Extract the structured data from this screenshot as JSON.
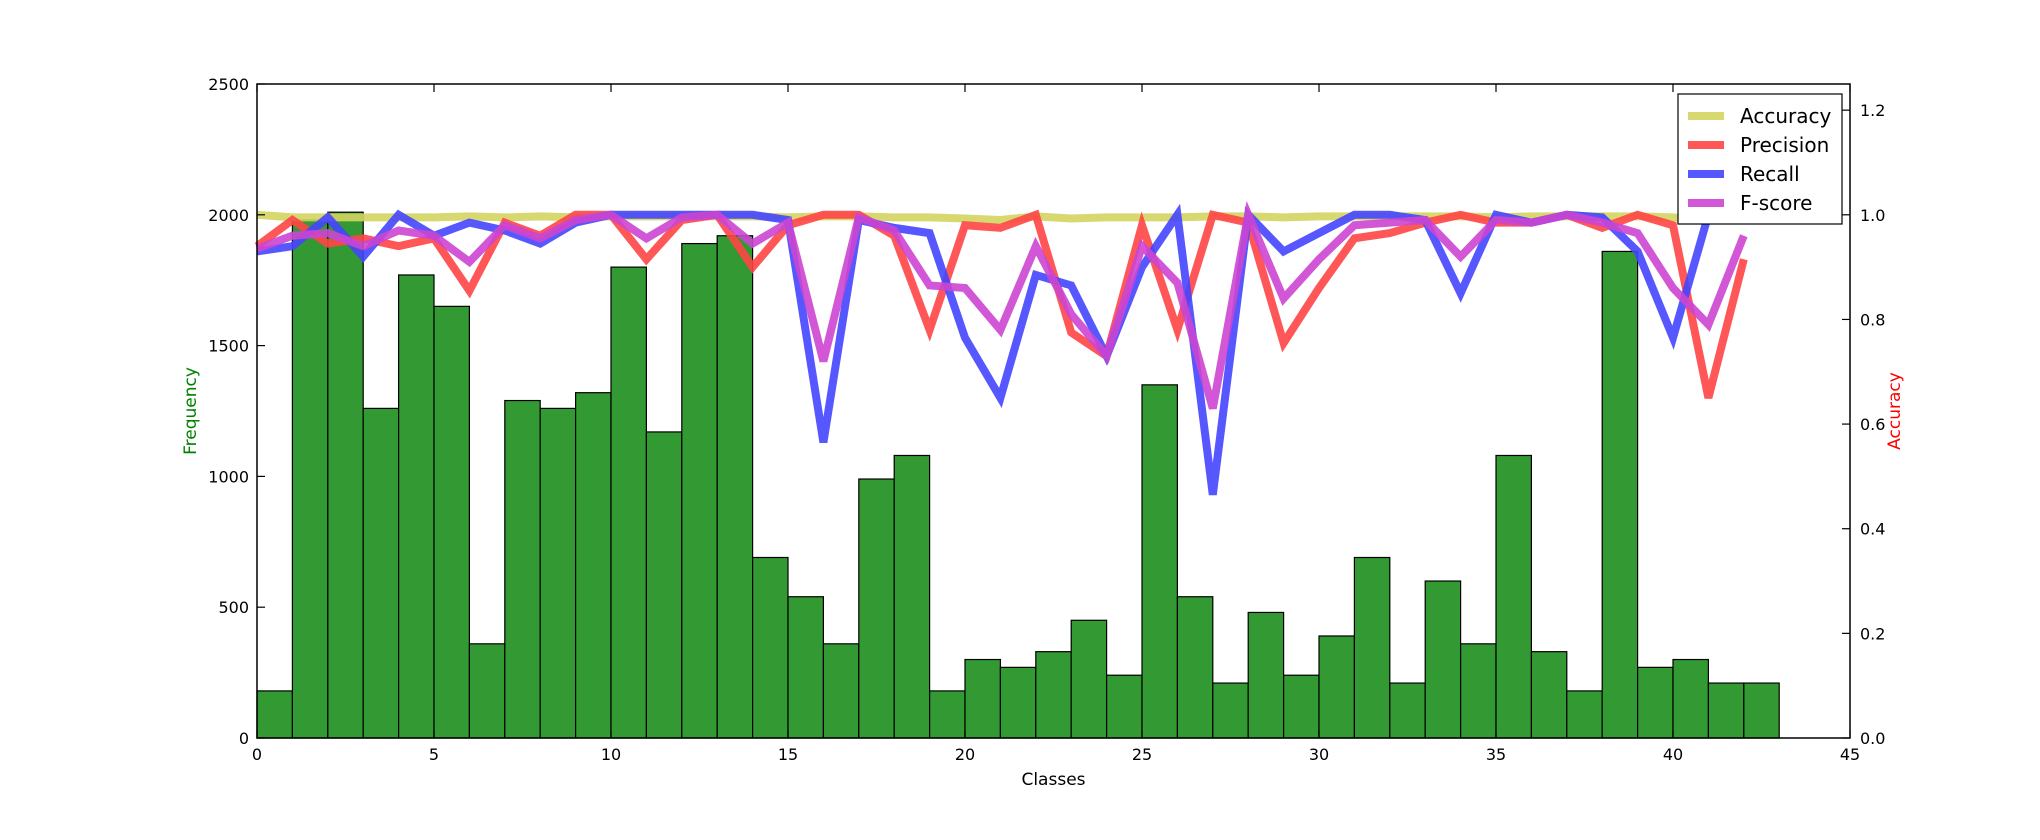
{
  "chart_data": {
    "type": "bar+line",
    "title": "",
    "xlabel": "Classes",
    "ylabel_left": "Frequency",
    "ylabel_right": "Accuracy",
    "xlim": [
      0,
      45
    ],
    "ylim_left": [
      0,
      2500
    ],
    "ylim_right": [
      0,
      1.25
    ],
    "x_ticks": [
      0,
      5,
      10,
      15,
      20,
      25,
      30,
      35,
      40,
      45
    ],
    "y_left_ticks": [
      0,
      500,
      1000,
      1500,
      2000,
      2500
    ],
    "y_right_ticks": [
      0.0,
      0.2,
      0.4,
      0.6,
      0.8,
      1.0,
      1.2
    ],
    "grid": false,
    "legend_position": "top-right",
    "colors": {
      "bars": "#339933",
      "ylabel_left": "#008000",
      "ylabel_right": "#ff0000",
      "Accuracy": "#d4d462",
      "Precision": "#ff4545",
      "Recall": "#4545ff",
      "F-score": "#cc45d2"
    },
    "bars": {
      "name": "Frequency",
      "classes": [
        0,
        1,
        2,
        3,
        4,
        5,
        6,
        7,
        8,
        9,
        10,
        11,
        12,
        13,
        14,
        15,
        16,
        17,
        18,
        19,
        20,
        21,
        22,
        23,
        24,
        25,
        26,
        27,
        28,
        29,
        30,
        31,
        32,
        33,
        34,
        35,
        36,
        37,
        38,
        39,
        40,
        41,
        42
      ],
      "values": [
        180,
        1980,
        2010,
        1260,
        1770,
        1650,
        360,
        1290,
        1260,
        1320,
        1800,
        1170,
        1890,
        1920,
        690,
        540,
        360,
        990,
        1080,
        180,
        300,
        270,
        330,
        450,
        240,
        1350,
        540,
        210,
        480,
        240,
        390,
        690,
        210,
        600,
        360,
        1080,
        330,
        180,
        1860,
        270,
        300,
        210,
        210
      ]
    },
    "series": [
      {
        "name": "Accuracy",
        "values": [
          1.0,
          0.995,
          0.995,
          0.995,
          0.995,
          0.995,
          0.997,
          0.995,
          0.997,
          0.995,
          0.997,
          0.997,
          0.997,
          0.997,
          0.997,
          0.995,
          0.997,
          0.997,
          0.995,
          0.995,
          0.993,
          0.99,
          0.997,
          0.993,
          0.995,
          0.995,
          0.995,
          0.997,
          0.997,
          0.995,
          0.997,
          0.997,
          0.997,
          0.997,
          0.997,
          0.995,
          0.997,
          0.997,
          0.997,
          0.997,
          0.995,
          0.99,
          0.997
        ]
      },
      {
        "name": "Precision",
        "values": [
          0.94,
          0.99,
          0.945,
          0.955,
          0.94,
          0.955,
          0.855,
          0.985,
          0.96,
          1.0,
          1.0,
          0.915,
          0.99,
          1.0,
          0.9,
          0.98,
          1.0,
          1.0,
          0.96,
          0.78,
          0.98,
          0.975,
          1.0,
          0.775,
          0.73,
          0.98,
          0.78,
          1.0,
          0.985,
          0.755,
          0.86,
          0.955,
          0.965,
          0.985,
          1.0,
          0.985,
          0.985,
          1.0,
          0.975,
          1.0,
          0.98,
          0.65,
          0.915
        ]
      },
      {
        "name": "Recall",
        "values": [
          0.93,
          0.94,
          0.995,
          0.92,
          1.0,
          0.96,
          0.985,
          0.97,
          0.945,
          0.985,
          1.0,
          1.0,
          1.0,
          1.0,
          1.0,
          0.99,
          0.565,
          0.99,
          0.975,
          0.965,
          0.765,
          0.65,
          0.885,
          0.865,
          0.73,
          0.9,
          1.0,
          0.465,
          1.0,
          0.93,
          0.965,
          1.0,
          1.0,
          0.99,
          0.85,
          1.0,
          0.985,
          1.0,
          0.995,
          0.93,
          0.765,
          1.0,
          1.0
        ]
      },
      {
        "name": "F-score",
        "values": [
          0.935,
          0.96,
          0.965,
          0.94,
          0.97,
          0.96,
          0.91,
          0.98,
          0.955,
          0.99,
          1.0,
          0.955,
          0.995,
          1.0,
          0.945,
          0.985,
          0.72,
          0.995,
          0.97,
          0.865,
          0.86,
          0.78,
          0.94,
          0.81,
          0.73,
          0.94,
          0.87,
          0.63,
          1.0,
          0.84,
          0.915,
          0.98,
          0.985,
          0.99,
          0.92,
          0.99,
          0.985,
          1.0,
          0.985,
          0.965,
          0.86,
          0.79,
          0.96
        ]
      }
    ]
  }
}
